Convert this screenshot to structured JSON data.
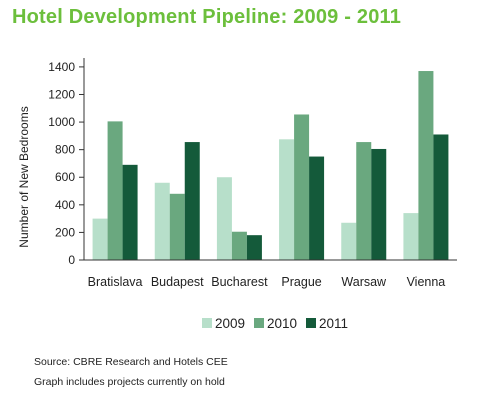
{
  "header": {
    "title": "Hotel Development Pipeline: 2009 - 2011"
  },
  "notes": {
    "source": "Source: CBRE Research and Hotels CEE",
    "onhold": "Graph includes projects currently on hold"
  },
  "chart_data": {
    "type": "bar",
    "title": "Hotel Development Pipeline: 2009 - 2011",
    "xlabel": "",
    "ylabel": "Number of New Bedrooms",
    "ylim": [
      0,
      1450
    ],
    "yticks": [
      0,
      200,
      400,
      600,
      800,
      1000,
      1200,
      1400
    ],
    "grid": false,
    "legend": "bottom",
    "categories": [
      "Bratislava",
      "Budapest",
      "Bucharest",
      "Prague",
      "Warsaw",
      "Vienna"
    ],
    "series": [
      {
        "name": "2009",
        "color": "#b7dfca",
        "values": [
          300,
          560,
          600,
          875,
          270,
          340
        ]
      },
      {
        "name": "2010",
        "color": "#6aa87f",
        "values": [
          1005,
          480,
          205,
          1055,
          855,
          1370
        ]
      },
      {
        "name": "2011",
        "color": "#145a3a",
        "values": [
          690,
          855,
          180,
          750,
          805,
          910
        ]
      }
    ]
  }
}
